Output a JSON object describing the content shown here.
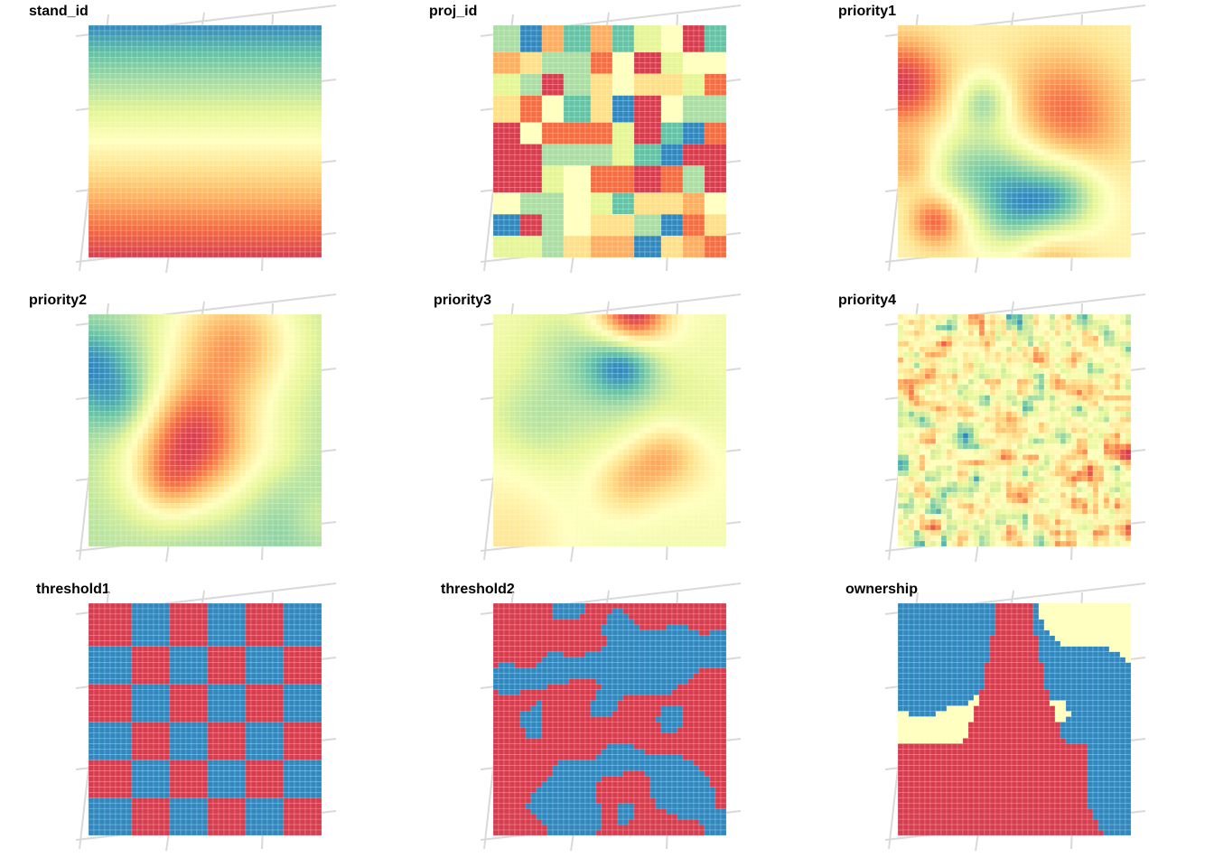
{
  "figure": {
    "palette": [
      "#d53e4f",
      "#f46d43",
      "#fdae61",
      "#fee08b",
      "#ffffbf",
      "#e6f598",
      "#abdda4",
      "#66c2a5",
      "#3288bd"
    ],
    "two_class_colors": [
      "#d53e4f",
      "#3288bd"
    ],
    "three_class_colors": [
      "#ffffbf",
      "#3288bd",
      "#d53e4f"
    ],
    "graticule_color": "#d9d9d9",
    "cell_line_color": "#ffffff"
  },
  "chart_data": [
    {
      "type": "heatmap",
      "title": "stand_id",
      "pattern": "vertical-gradient",
      "value_range": [
        0,
        1
      ]
    },
    {
      "type": "heatmap",
      "title": "proj_id",
      "pattern": "project-blocks",
      "blocks": [
        10,
        10
      ],
      "block_values": [
        [
          6,
          8,
          2,
          7,
          2,
          7,
          5,
          4,
          0,
          7
        ],
        [
          2,
          3,
          6,
          6,
          1,
          4,
          0,
          5,
          4,
          4
        ],
        [
          5,
          6,
          0,
          6,
          3,
          4,
          3,
          3,
          5,
          1
        ],
        [
          3,
          1,
          4,
          7,
          3,
          8,
          0,
          4,
          6,
          6
        ],
        [
          0,
          4,
          1,
          1,
          1,
          5,
          0,
          7,
          8,
          1
        ],
        [
          0,
          0,
          6,
          6,
          6,
          5,
          7,
          8,
          0,
          0
        ],
        [
          0,
          0,
          5,
          4,
          1,
          1,
          0,
          1,
          6,
          0
        ],
        [
          4,
          6,
          6,
          4,
          5,
          7,
          3,
          3,
          2,
          4
        ],
        [
          8,
          0,
          6,
          4,
          3,
          3,
          6,
          8,
          1,
          3
        ],
        [
          5,
          5,
          6,
          3,
          2,
          2,
          8,
          3,
          2,
          1
        ]
      ]
    },
    {
      "type": "heatmap",
      "title": "priority1",
      "pattern": "smooth-field"
    },
    {
      "type": "heatmap",
      "title": "priority2",
      "pattern": "smooth-field"
    },
    {
      "type": "heatmap",
      "title": "priority3",
      "pattern": "smooth-field"
    },
    {
      "type": "heatmap",
      "title": "priority4",
      "pattern": "noise-field"
    },
    {
      "type": "heatmap",
      "title": "threshold1",
      "pattern": "checkerboard",
      "blocks": [
        6,
        6
      ],
      "classes": 2
    },
    {
      "type": "heatmap",
      "title": "threshold2",
      "pattern": "binary-field",
      "classes": 2
    },
    {
      "type": "heatmap",
      "title": "ownership",
      "pattern": "three-class-field",
      "classes": 3
    }
  ]
}
